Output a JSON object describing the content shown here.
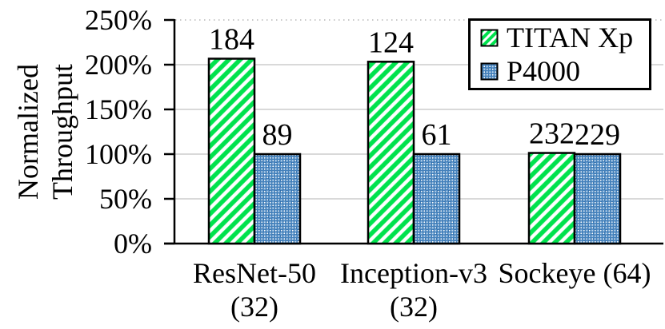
{
  "chart_data": {
    "type": "bar",
    "title": "",
    "ylabel_lines": [
      "Normalized",
      "Throughput"
    ],
    "categories": [
      {
        "lines": [
          "ResNet-50",
          "(32)"
        ]
      },
      {
        "lines": [
          "Inception-v3",
          "(32)"
        ]
      },
      {
        "lines": [
          "Sockeye (64)"
        ]
      }
    ],
    "yticks": [
      {
        "value": 0,
        "label": "0%"
      },
      {
        "value": 50,
        "label": "50%"
      },
      {
        "value": 100,
        "label": "100%"
      },
      {
        "value": 150,
        "label": "150%"
      },
      {
        "value": 200,
        "label": "200%"
      },
      {
        "value": 250,
        "label": "250%"
      }
    ],
    "ylim": [
      0,
      250
    ],
    "grid": "horizontal",
    "grid_top_line_style": "dotted",
    "legend_position": "top-right",
    "series": [
      {
        "name": "TITAN Xp",
        "pattern": "green-diagonal-hatch",
        "values_pct": [
          206.7,
          203.3,
          101.3
        ],
        "bar_labels": [
          "184",
          "124",
          "232"
        ]
      },
      {
        "name": "P4000",
        "pattern": "blue-weave",
        "values_pct": [
          100,
          100,
          100
        ],
        "bar_labels": [
          "89",
          "61",
          "229"
        ]
      }
    ]
  },
  "colors": {
    "hatch_green": "#00E24D",
    "weave_dark_blue": "#2E6FAE",
    "weave_mid_blue": "#5B93C8",
    "weave_light_blue": "#BDD7EE",
    "weave_dot_white": "#FFFFFF",
    "grid_line": "#D9D9D9",
    "dotted_grid": "#C9C9C9",
    "axis": "#000000",
    "bar_outline": "#000000",
    "text": "#000000",
    "background": "#FFFFFF"
  }
}
